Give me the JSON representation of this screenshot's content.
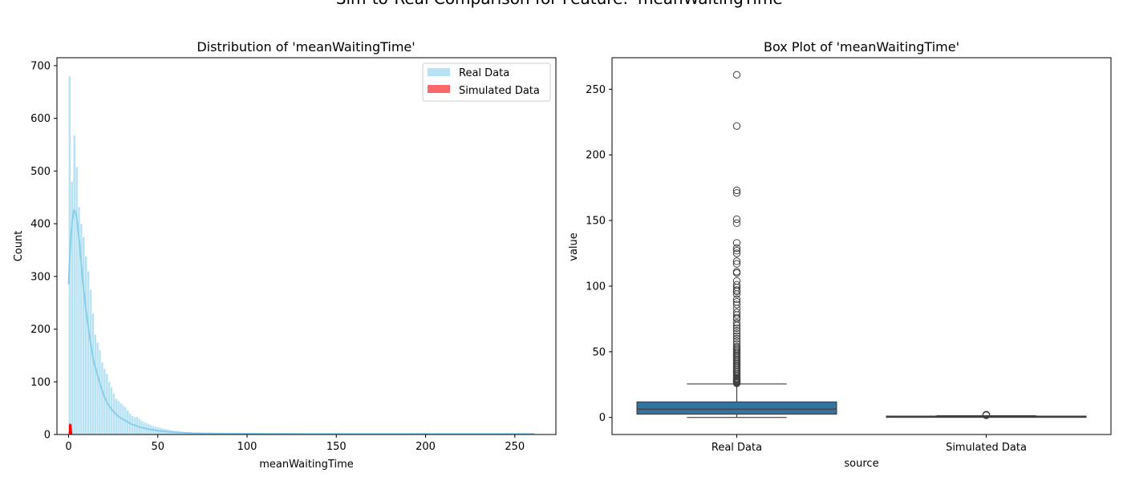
{
  "suptitle": "Sim-to-Real Comparison for Feature: 'meanWaitingTime'",
  "colors": {
    "real": "#87ceeb",
    "simulated": "#ff4d4d",
    "box": "#3274a1",
    "kde": "#87ceeb",
    "simulated_kde": "#ff0000"
  },
  "chart_data": [
    {
      "type": "histogram",
      "title": "Distribution of 'meanWaitingTime'",
      "xlabel": "meanWaitingTime",
      "ylabel": "Count",
      "xlim": [
        -6.5,
        273
      ],
      "ylim": [
        0,
        715
      ],
      "xticks": [
        0,
        50,
        100,
        150,
        200,
        250
      ],
      "yticks": [
        0,
        100,
        200,
        300,
        400,
        500,
        600,
        700
      ],
      "legend_position": "top-right",
      "bin_width": 1.3,
      "series": [
        {
          "name": "Real Data",
          "bins_start": 0,
          "counts": [
            680,
            480,
            568,
            508,
            432,
            400,
            375,
            338,
            310,
            275,
            230,
            190,
            175,
            160,
            137,
            125,
            115,
            100,
            90,
            78,
            68,
            64,
            60,
            56,
            52,
            46,
            40,
            36,
            33,
            34,
            30,
            26,
            24,
            22,
            20,
            18,
            16,
            15,
            14,
            13,
            12,
            11,
            10,
            9,
            8,
            7,
            7,
            6,
            6,
            5,
            5,
            4,
            4,
            4,
            3,
            3,
            3,
            3,
            2,
            2,
            2,
            2,
            2,
            2,
            2,
            1,
            1,
            1,
            1,
            1,
            1,
            1,
            1,
            1,
            1,
            1,
            1,
            1,
            1,
            1,
            1,
            1,
            1,
            1,
            1,
            1,
            1,
            1,
            1,
            1,
            1,
            1,
            1,
            1,
            1,
            1,
            1,
            1,
            1,
            1,
            1,
            1,
            1,
            1,
            1,
            1,
            1,
            1,
            1,
            1,
            1,
            1,
            1,
            1,
            1,
            1,
            1,
            1,
            1,
            1,
            1,
            1,
            1,
            1,
            1,
            1,
            1,
            1,
            1,
            1,
            1,
            1,
            1,
            1,
            1,
            1,
            1,
            1,
            1,
            1,
            1,
            1,
            1,
            1,
            1,
            1,
            1,
            1,
            1,
            1,
            1,
            1,
            1,
            1,
            1,
            1,
            1,
            1,
            1,
            1,
            1,
            1,
            1,
            1,
            1,
            1,
            1,
            1,
            1,
            1,
            1,
            1,
            1,
            1,
            1,
            1,
            1,
            1,
            1,
            1,
            1,
            1,
            1,
            1,
            1,
            1,
            1,
            1,
            1,
            1,
            1,
            1,
            1,
            1,
            1,
            1,
            1,
            1,
            1,
            1
          ],
          "kde": [
            [
              0,
              285
            ],
            [
              1,
              360
            ],
            [
              2,
              405
            ],
            [
              3,
              425
            ],
            [
              4,
              422
            ],
            [
              5,
              400
            ],
            [
              6,
              368
            ],
            [
              7,
              330
            ],
            [
              8,
              290
            ],
            [
              10,
              230
            ],
            [
              12,
              180
            ],
            [
              14,
              140
            ],
            [
              16,
              115
            ],
            [
              18,
              92
            ],
            [
              20,
              72
            ],
            [
              22,
              58
            ],
            [
              25,
              44
            ],
            [
              28,
              34
            ],
            [
              30,
              30
            ],
            [
              35,
              20
            ],
            [
              40,
              14
            ],
            [
              45,
              10
            ],
            [
              50,
              7
            ],
            [
              60,
              4
            ],
            [
              70,
              2.5
            ],
            [
              80,
              2
            ],
            [
              100,
              1.5
            ],
            [
              150,
              1
            ],
            [
              200,
              1
            ],
            [
              250,
              1
            ],
            [
              261,
              1
            ]
          ]
        },
        {
          "name": "Simulated Data",
          "kde": [
            [
              0.6,
              1
            ],
            [
              0.8,
              18
            ],
            [
              1.0,
              20
            ],
            [
              1.2,
              14
            ],
            [
              1.4,
              6
            ],
            [
              1.6,
              1
            ]
          ]
        }
      ]
    },
    {
      "type": "box",
      "title": "Box Plot of 'meanWaitingTime'",
      "xlabel": "source",
      "ylabel": "value",
      "ylim": [
        -13,
        274
      ],
      "yticks": [
        0,
        50,
        100,
        150,
        200,
        250
      ],
      "categories": [
        "Real Data",
        "Simulated Data"
      ],
      "boxes": [
        {
          "name": "Real Data",
          "q1": 2.5,
          "median": 6.3,
          "q3": 11.8,
          "whisker_low": 0,
          "whisker_high": 25.5,
          "outliers": [
            261,
            222,
            173,
            171,
            151,
            148,
            133,
            129,
            127,
            125,
            119,
            117,
            111,
            110,
            104,
            101,
            99,
            97,
            96,
            94,
            90,
            88,
            86,
            83,
            80,
            78,
            76,
            75,
            72,
            70,
            68,
            66,
            64,
            62,
            60,
            58,
            56,
            54,
            53,
            52,
            51,
            50,
            49,
            48,
            47,
            46,
            45,
            44,
            43,
            42,
            41,
            40,
            39,
            38,
            37,
            36,
            35,
            34,
            33,
            32,
            31,
            30,
            29.5,
            29,
            28.5,
            28,
            27.5,
            27,
            26.5,
            26
          ]
        },
        {
          "name": "Simulated Data",
          "q1": 0.7,
          "median": 0.9,
          "q3": 1.0,
          "whisker_low": 0.3,
          "whisker_high": 1.3,
          "outliers": [
            1.6,
            1.8,
            2.0,
            2.1
          ]
        }
      ]
    }
  ]
}
